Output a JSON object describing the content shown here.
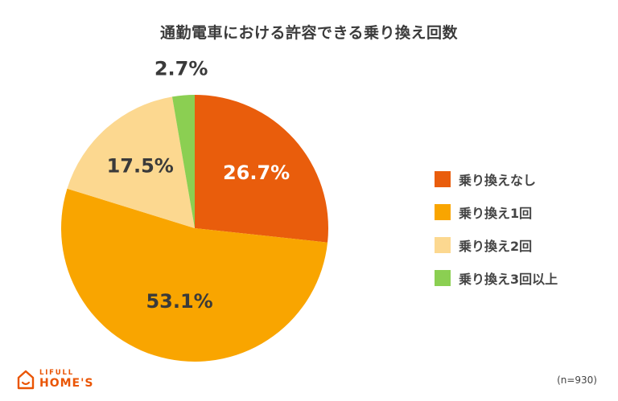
{
  "chart_data": {
    "type": "pie",
    "title": "通勤電車における許容できる乗り換え回数",
    "categories": [
      "乗り換えなし",
      "乗り換え1回",
      "乗り換え2回",
      "乗り換え3回以上"
    ],
    "values": [
      26.7,
      53.1,
      17.5,
      2.7
    ],
    "value_labels": [
      "26.7%",
      "53.1%",
      "17.5%",
      "2.7%"
    ],
    "colors": [
      "#e95d0c",
      "#f9a500",
      "#fcd890",
      "#8bcf52"
    ],
    "label_colors": [
      "#ffffff",
      "#3a3a3a",
      "#3a3a3a",
      "#3a3a3a"
    ],
    "start": "12 o'clock, clockwise",
    "legend_position": "right"
  },
  "legend": {
    "items": [
      "乗り換えなし",
      "乗り換え1回",
      "乗り換え2回",
      "乗り換え3回以上"
    ]
  },
  "logo": {
    "line1": "LIFULL",
    "line2": "HOME'S",
    "color": "#ea5504"
  },
  "note": "(n=930)"
}
